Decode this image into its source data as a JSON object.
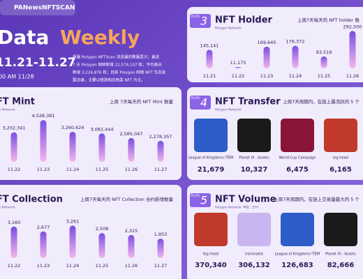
{
  "header": {
    "logo": "PANews",
    "brand": "NFTSCAN",
    "title_a": "Data",
    "title_b": "Weekly",
    "dates": "11.21-11.27",
    "time": "00 AM 11/28"
  },
  "intro": [
    "根据 Polygon NFTScan 浏览器的数据显示，最近",
    "7 天 Polygon 网络新增 22,574,137 枚，平均每天",
    "新增 3,224,876 枚；目前 Polygon 网络 NFT 生态发",
    "展迅速，主要以链游和应用类 NFT 为主。"
  ],
  "holder": {
    "type": "bar",
    "plate": "PLATE",
    "num": "3",
    "title": "NFT Holder",
    "network": "Polygon Network",
    "note": "上周7天每天的 NFT holder 数",
    "categories": [
      "11.21",
      "11.22",
      "11.23",
      "11.24",
      "11.25",
      "11.26"
    ],
    "values": [
      145141,
      11175,
      169645,
      176372,
      93519,
      292500
    ],
    "value_labels": [
      "145,141",
      "11,175",
      "169,645",
      "176,372",
      "93,519",
      "292,500"
    ],
    "ylim": [
      0,
      300000
    ]
  },
  "mint": {
    "type": "bar",
    "title": "NFT Mint",
    "network": "Polygon Network",
    "note": "上周 7天每天的 NFT Mint 数量",
    "categories": [
      "11.22",
      "11.23",
      "11.24",
      "11.25",
      "11.26",
      "11.27"
    ],
    "values": [
      3202341,
      4528391,
      3260624,
      3082444,
      2585047,
      2278357
    ],
    "value_labels": [
      "3,202,341",
      "4,528,391",
      "3,260,624",
      "3,082,444",
      "2,585,047",
      "2,278,357"
    ],
    "ylim": [
      0,
      5000000
    ]
  },
  "transfer": {
    "type": "list",
    "plate": "PLATE",
    "num": "4",
    "title": "NFT Transfer",
    "network": "Polygon Network",
    "note": "上周7天周期内，在链上最活跃的 5 个",
    "names": [
      "League of Kingdoms ITEM",
      "Planet IX - Assets",
      "World Cup Campaign",
      "big head"
    ],
    "values": [
      21679,
      10327,
      6475,
      6165
    ],
    "value_labels": [
      "21,679",
      "10,327",
      "6,475",
      "6,165"
    ]
  },
  "collection": {
    "type": "bar",
    "title": "NFT Collection",
    "network": "Polygon Network",
    "note": "上周7天每天的 NFT Collection 合约新增数量",
    "categories": [
      "11.22",
      "11.23",
      "11.24",
      "11.25",
      "11.26",
      "11.27"
    ],
    "values": [
      3160,
      2677,
      3261,
      2508,
      2315,
      1953
    ],
    "value_labels": [
      "3,160",
      "2,677",
      "3,261",
      "2,508",
      "2,315",
      "1,953"
    ],
    "ylim": [
      0,
      3500
    ]
  },
  "volume": {
    "type": "list",
    "plate": "PLATE",
    "num": "5",
    "title": "NFT Volume",
    "network": "Polygon Network",
    "unit": "单位：ETH",
    "note": "上周7天周期内，在链上交易量最大的 5 个",
    "names": [
      "big head",
      "minimalist",
      "League of Kingdoms ITEM",
      "Planet IX - Assets"
    ],
    "values": [
      370340,
      306132,
      126683,
      82666
    ],
    "value_labels": [
      "370,340",
      "306,132",
      "126,683",
      "82,666"
    ]
  }
}
